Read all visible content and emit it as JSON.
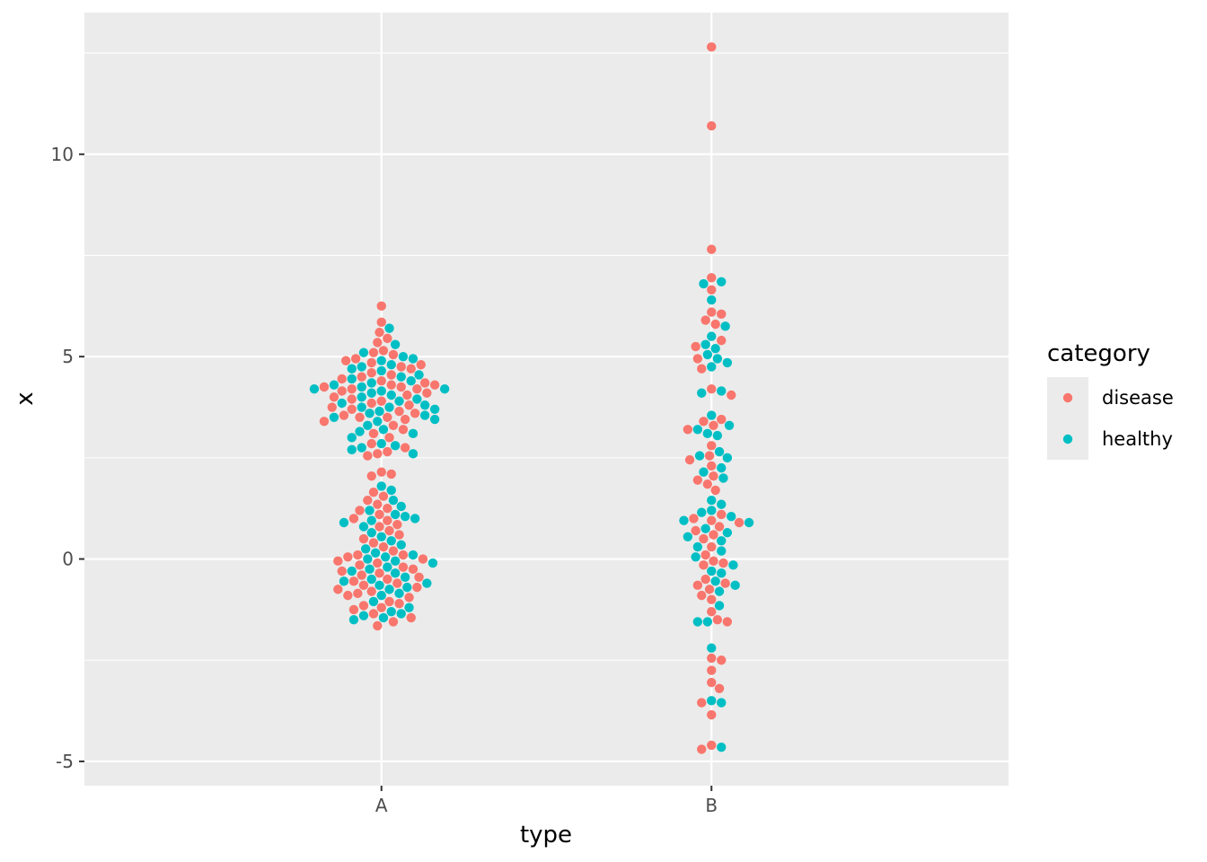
{
  "chart_data": {
    "type": "scatter",
    "subtype": "beeswarm",
    "title": "",
    "xlabel": "type",
    "ylabel": "x",
    "categories": [
      "A",
      "B"
    ],
    "ylim": [
      -5.6,
      13.5
    ],
    "y_ticks": [
      -5,
      0,
      5,
      10
    ],
    "y_tick_labels": [
      "-5",
      "0",
      "5",
      "10"
    ],
    "grid": true,
    "legend": {
      "title": "category",
      "placement": "right",
      "entries": [
        {
          "name": "disease",
          "color": "#F8766D"
        },
        {
          "name": "healthy",
          "color": "#00BFC4"
        }
      ]
    },
    "colors": {
      "panel_background": "#EBEBEB",
      "grid_major": "#FFFFFF",
      "disease": "#F8766D",
      "healthy": "#00BFC4"
    },
    "series": [
      {
        "name": "disease",
        "category": "A",
        "y": [
          6.25,
          5.85,
          5.6,
          5.45,
          5.35,
          5.15,
          5.1,
          5.05,
          4.95,
          4.9,
          4.85,
          4.8,
          4.75,
          4.7,
          4.6,
          4.55,
          4.5,
          4.45,
          4.4,
          4.35,
          4.3,
          4.3,
          4.25,
          4.25,
          4.2,
          4.2,
          4.15,
          4.1,
          4.05,
          4.0,
          3.95,
          3.9,
          3.85,
          3.8,
          3.75,
          3.7,
          3.65,
          3.6,
          3.55,
          3.5,
          3.5,
          3.45,
          3.4,
          3.3,
          3.2,
          3.1,
          3.0,
          2.85,
          2.75,
          2.65,
          2.6,
          2.55,
          2.15,
          2.1,
          2.05,
          1.65,
          1.55,
          1.45,
          1.35,
          1.25,
          1.2,
          1.1,
          1.0,
          0.95,
          0.85,
          0.8,
          0.7,
          0.6,
          0.5,
          0.4,
          0.3,
          0.2,
          0.1,
          0.1,
          0.05,
          0.0,
          -0.05,
          -0.1,
          -0.15,
          -0.2,
          -0.25,
          -0.3,
          -0.35,
          -0.4,
          -0.45,
          -0.5,
          -0.55,
          -0.6,
          -0.65,
          -0.7,
          -0.75,
          -0.8,
          -0.85,
          -0.9,
          -0.95,
          -1.05,
          -1.1,
          -1.15,
          -1.2,
          -1.25,
          -1.35,
          -1.45,
          -1.55,
          -1.65
        ]
      },
      {
        "name": "healthy",
        "category": "A",
        "y": [
          5.7,
          5.3,
          5.1,
          5.0,
          4.95,
          4.9,
          4.8,
          4.75,
          4.7,
          4.65,
          4.55,
          4.5,
          4.45,
          4.4,
          4.35,
          4.3,
          4.25,
          4.2,
          4.2,
          4.15,
          4.1,
          4.05,
          4.0,
          3.95,
          3.9,
          3.85,
          3.8,
          3.75,
          3.75,
          3.7,
          3.65,
          3.6,
          3.55,
          3.5,
          3.45,
          3.4,
          3.3,
          3.2,
          3.15,
          3.1,
          3.0,
          2.85,
          2.8,
          2.75,
          2.7,
          2.6,
          1.8,
          1.7,
          1.45,
          1.3,
          1.2,
          1.1,
          1.05,
          1.0,
          0.95,
          0.9,
          0.8,
          0.65,
          0.55,
          0.45,
          0.35,
          0.25,
          0.15,
          0.1,
          0.05,
          0.0,
          -0.05,
          -0.1,
          -0.2,
          -0.25,
          -0.3,
          -0.35,
          -0.45,
          -0.5,
          -0.55,
          -0.6,
          -0.65,
          -0.7,
          -0.75,
          -0.85,
          -0.9,
          -1.05,
          -1.2,
          -1.3,
          -1.35,
          -1.4,
          -1.45,
          -1.5
        ]
      },
      {
        "name": "disease",
        "category": "B",
        "y": [
          12.65,
          10.7,
          7.65,
          6.95,
          6.65,
          6.1,
          6.05,
          5.9,
          5.8,
          5.4,
          5.25,
          4.95,
          4.7,
          4.2,
          4.05,
          3.45,
          3.4,
          3.3,
          3.2,
          2.8,
          2.55,
          2.45,
          2.3,
          2.05,
          1.95,
          1.85,
          1.7,
          1.1,
          1.0,
          0.95,
          0.9,
          0.8,
          0.7,
          0.6,
          0.5,
          0.3,
          0.1,
          -0.05,
          -0.1,
          -0.15,
          -0.5,
          -0.6,
          -0.65,
          -0.75,
          -0.9,
          -1.0,
          -1.3,
          -1.5,
          -1.55,
          -2.45,
          -2.5,
          -2.75,
          -3.05,
          -3.2,
          -3.55,
          -3.85,
          -4.6,
          -4.7
        ]
      },
      {
        "name": "healthy",
        "category": "B",
        "y": [
          6.85,
          6.8,
          6.4,
          5.75,
          5.5,
          5.3,
          5.2,
          5.05,
          4.95,
          4.85,
          4.75,
          4.15,
          4.1,
          3.55,
          3.3,
          3.2,
          3.1,
          3.05,
          2.65,
          2.55,
          2.5,
          2.25,
          2.15,
          2.0,
          1.45,
          1.35,
          1.2,
          1.15,
          1.05,
          0.95,
          0.9,
          0.75,
          0.65,
          0.55,
          0.45,
          0.3,
          0.2,
          0.05,
          -0.15,
          -0.3,
          -0.35,
          -0.55,
          -0.65,
          -0.8,
          -1.15,
          -1.55,
          -1.55,
          -2.2,
          -3.5,
          -3.55,
          -4.65
        ]
      }
    ]
  }
}
